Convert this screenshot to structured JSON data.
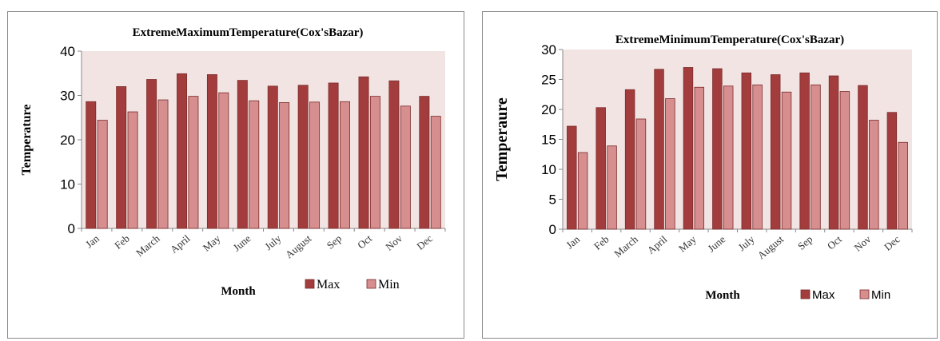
{
  "chart_data": [
    {
      "type": "bar",
      "title": "ExtremeMaximumTemperature(Cox'sBazar)",
      "xlabel": "Month",
      "ylabel": "Temperature",
      "ylim": [
        0,
        40
      ],
      "yticks": [
        0,
        10,
        20,
        30,
        40
      ],
      "grid": false,
      "legend_position": "bottom-right",
      "categories": [
        "Jan",
        "Feb",
        "March",
        "April",
        "May",
        "June",
        "July",
        "August",
        "Sep",
        "Oct",
        "Nov",
        "Dec"
      ],
      "series": [
        {
          "name": "Max",
          "color": "#a33d3d",
          "values": [
            28.6,
            32.0,
            33.6,
            34.9,
            34.7,
            33.4,
            32.1,
            32.3,
            32.8,
            34.2,
            33.3,
            29.8
          ]
        },
        {
          "name": "Min",
          "color": "#d68e8e",
          "values": [
            24.4,
            26.3,
            29.0,
            29.8,
            30.6,
            28.8,
            28.4,
            28.5,
            28.6,
            29.8,
            27.6,
            25.3
          ]
        }
      ],
      "plot_background": "#f3e4e4"
    },
    {
      "type": "bar",
      "title": "ExtremeMinimumTemperature(Cox'sBazar)",
      "xlabel": "Month",
      "ylabel": "Temperaure",
      "ylim": [
        0,
        30
      ],
      "yticks": [
        0,
        5,
        10,
        15,
        20,
        25,
        30
      ],
      "grid": false,
      "legend_position": "bottom-right",
      "categories": [
        "Jan",
        "Feb",
        "March",
        "April",
        "May",
        "June",
        "July",
        "August",
        "Sep",
        "Oct",
        "Nov",
        "Dec"
      ],
      "series": [
        {
          "name": "Max",
          "color": "#a33d3d",
          "values": [
            17.2,
            20.3,
            23.3,
            26.7,
            27.0,
            26.8,
            26.1,
            25.8,
            26.1,
            25.6,
            24.0,
            19.5
          ]
        },
        {
          "name": "Min",
          "color": "#d68e8e",
          "values": [
            12.8,
            13.9,
            18.4,
            21.8,
            23.7,
            23.9,
            24.1,
            22.9,
            24.1,
            23.0,
            18.2,
            14.5
          ]
        }
      ],
      "plot_background": "#f3e4e4"
    }
  ]
}
